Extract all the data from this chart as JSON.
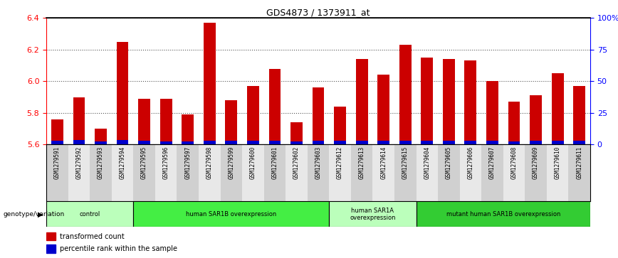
{
  "title": "GDS4873 / 1373911_at",
  "samples": [
    "GSM1279591",
    "GSM1279592",
    "GSM1279593",
    "GSM1279594",
    "GSM1279595",
    "GSM1279596",
    "GSM1279597",
    "GSM1279598",
    "GSM1279599",
    "GSM1279600",
    "GSM1279601",
    "GSM1279602",
    "GSM1279603",
    "GSM1279612",
    "GSM1279613",
    "GSM1279614",
    "GSM1279615",
    "GSM1279604",
    "GSM1279605",
    "GSM1279606",
    "GSM1279607",
    "GSM1279608",
    "GSM1279609",
    "GSM1279610",
    "GSM1279611"
  ],
  "red_values": [
    5.76,
    5.9,
    5.7,
    6.25,
    5.89,
    5.89,
    5.79,
    6.37,
    5.88,
    5.97,
    6.08,
    5.74,
    5.96,
    5.84,
    6.14,
    6.04,
    6.23,
    6.15,
    6.14,
    6.13,
    6.0,
    5.87,
    5.91,
    6.05,
    5.97
  ],
  "blue_values": [
    0.022,
    0.028,
    0.02,
    0.03,
    0.022,
    0.02,
    0.018,
    0.022,
    0.022,
    0.022,
    0.025,
    0.018,
    0.022,
    0.022,
    0.025,
    0.022,
    0.025,
    0.025,
    0.022,
    0.022,
    0.025,
    0.02,
    0.022,
    0.025,
    0.022
  ],
  "ylim_left": [
    5.6,
    6.4
  ],
  "ylim_right": [
    0,
    100
  ],
  "yticks_left": [
    5.6,
    5.8,
    6.0,
    6.2,
    6.4
  ],
  "yticks_right": [
    0,
    25,
    50,
    75,
    100
  ],
  "ytick_labels_right": [
    "0",
    "25",
    "50",
    "75",
    "100%"
  ],
  "groups": [
    {
      "label": "control",
      "start": 0,
      "end": 4,
      "color": "#bbffbb"
    },
    {
      "label": "human SAR1B overexpression",
      "start": 4,
      "end": 13,
      "color": "#44ee44"
    },
    {
      "label": "human SAR1A\noverexpression",
      "start": 13,
      "end": 17,
      "color": "#bbffbb"
    },
    {
      "label": "mutant human SAR1B overexpression",
      "start": 17,
      "end": 25,
      "color": "#33cc33"
    }
  ],
  "bar_width": 0.55,
  "red_color": "#cc0000",
  "blue_color": "#0000cc",
  "baseline": 5.6,
  "genotype_label": "genotype/variation",
  "legend_red": "transformed count",
  "legend_blue": "percentile rank within the sample",
  "chart_bg": "#ffffff",
  "xticklabel_bg_odd": "#d0d0d0",
  "xticklabel_bg_even": "#e8e8e8",
  "grid_color": "#555555"
}
